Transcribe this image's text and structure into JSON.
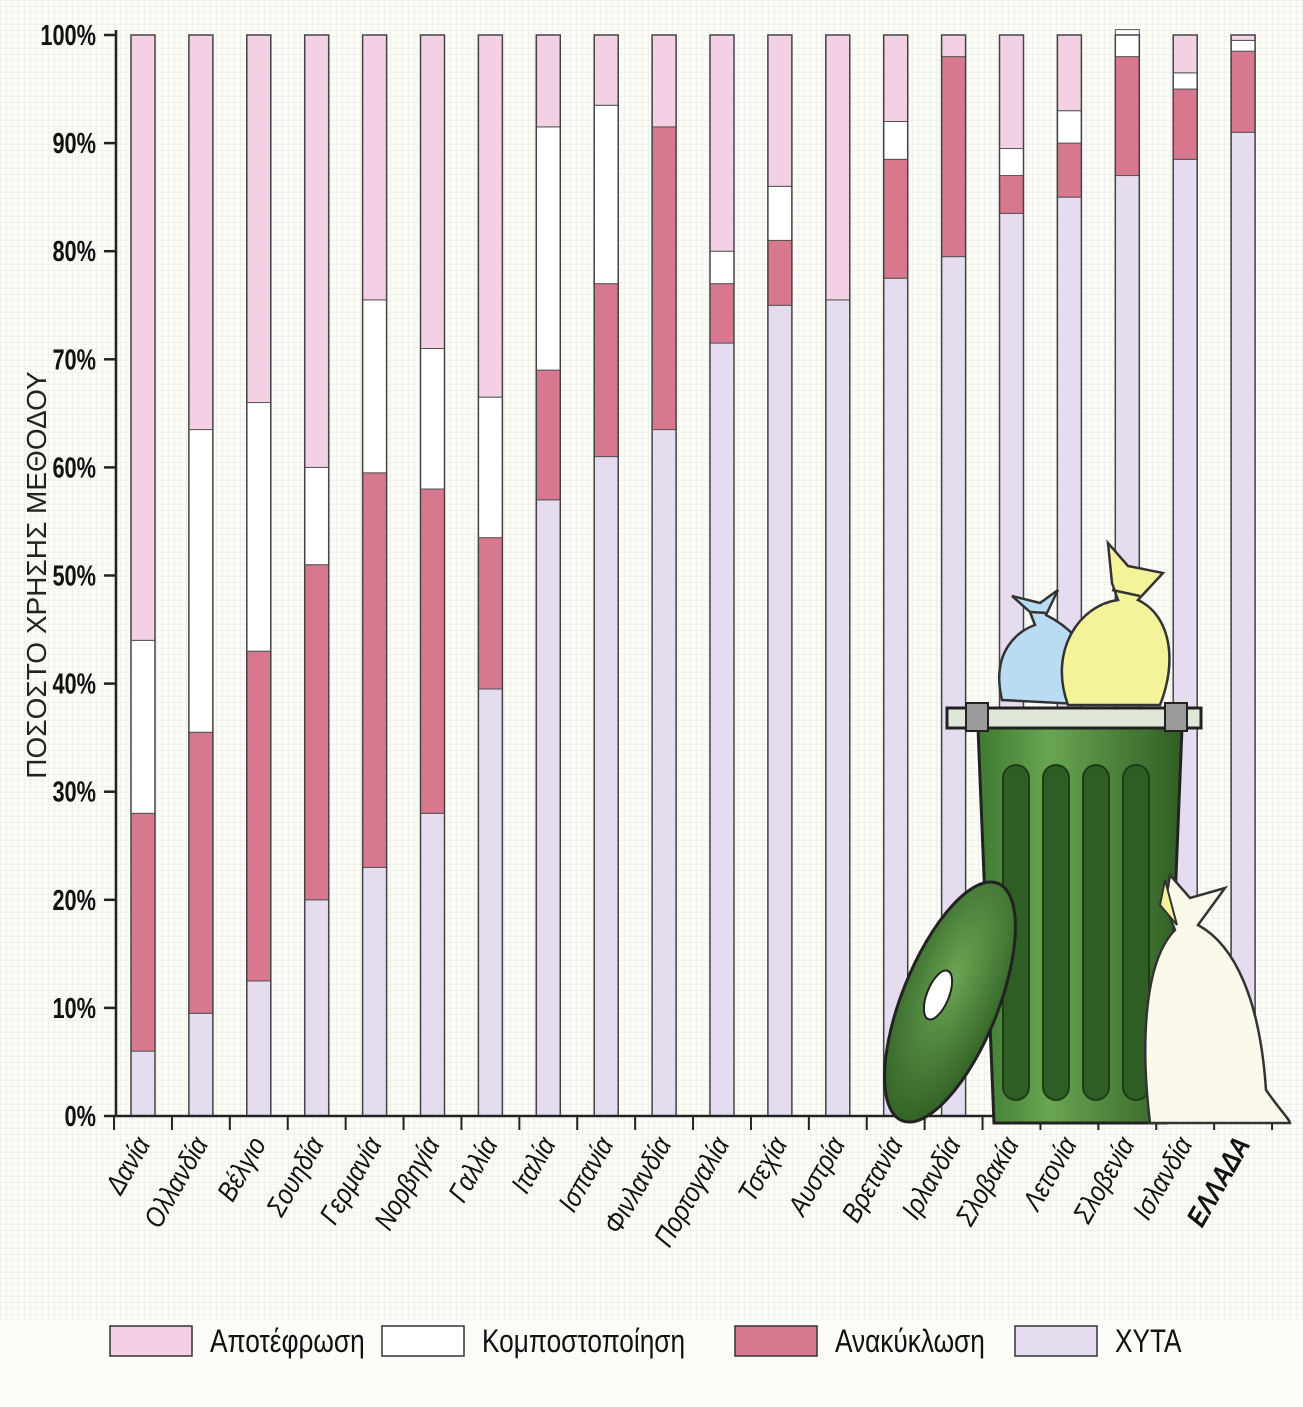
{
  "chart_data": {
    "type": "bar",
    "stacked": true,
    "ylabel": "ΠΟΣΟΣΤΟ ΧΡΗΣΗΣ ΜΕΘΟΔΟΥ",
    "ylim": [
      0,
      100
    ],
    "yticks": [
      "0%",
      "10%",
      "20%",
      "30%",
      "40%",
      "50%",
      "60%",
      "70%",
      "80%",
      "90%",
      "100%"
    ],
    "grid": true,
    "legend_position": "bottom",
    "categories": [
      "Δανία",
      "Ολλανδία",
      "Βέλγιο",
      "Σουηδία",
      "Γερμανία",
      "Νορβηγία",
      "Γαλλία",
      "Ιταλία",
      "Ισπανία",
      "Φινλανδία",
      "Πορτογαλία",
      "Τσεχία",
      "Αυστρία",
      "Βρετανία",
      "Ιρλανδία",
      "Σλοβακία",
      "Λετονία",
      "Σλοβενία",
      "Ισλανδία",
      "ΕΛΛΑΔΑ"
    ],
    "highlight_category": "ΕΛΛΑΔΑ",
    "series": [
      {
        "name": "ΧΥΤΑ",
        "color": "#e6dcf0",
        "values": [
          6,
          9.5,
          12.5,
          20,
          23,
          28,
          39.5,
          57,
          61,
          63.5,
          71.5,
          75,
          75.5,
          77.5,
          79.5,
          83.5,
          85,
          87,
          88.5,
          91
        ]
      },
      {
        "name": "Ανακύκλωση",
        "color": "#d8788f",
        "values": [
          22,
          26,
          30.5,
          31,
          36.5,
          30,
          14,
          12,
          16,
          28,
          5.5,
          6,
          0,
          11,
          18.5,
          3.5,
          5,
          11,
          6.5,
          7.5
        ]
      },
      {
        "name": "Κομποστοποίηση",
        "color": "#ffffff",
        "values": [
          16,
          28,
          23,
          9,
          16,
          13,
          13,
          22.5,
          16.5,
          0,
          3,
          5,
          0,
          3.5,
          0,
          2.5,
          3,
          2.5,
          1.5,
          1
        ]
      },
      {
        "name": "Αποτέφρωση",
        "color": "#f3d0e3",
        "values": [
          56,
          36.5,
          34,
          40,
          24.5,
          29,
          33.5,
          8.5,
          6.5,
          8.5,
          20,
          14,
          24.5,
          8,
          2,
          10.5,
          7,
          0,
          3.5,
          0.5
        ]
      }
    ],
    "legend": [
      {
        "label": "Αποτέφρωση",
        "color": "#f3d0e3"
      },
      {
        "label": "Κομποστοποίηση",
        "color": "#ffffff"
      },
      {
        "label": "Ανακύκλωση",
        "color": "#d8788f"
      },
      {
        "label": "ΧΥΤΑ",
        "color": "#e6dcf0"
      }
    ]
  },
  "illustration": {
    "icons": [
      "trash-can-icon",
      "trash-lid-icon",
      "garbage-bag-blue-icon",
      "garbage-bag-yellow-icon",
      "garbage-bag-white-icon"
    ],
    "colors": {
      "can": "#4d8a3e",
      "can_dark": "#2f5e24",
      "bag_blue": "#b9dcf2",
      "bag_yellow": "#f4f39a",
      "bag_white": "#fbfaea"
    }
  }
}
